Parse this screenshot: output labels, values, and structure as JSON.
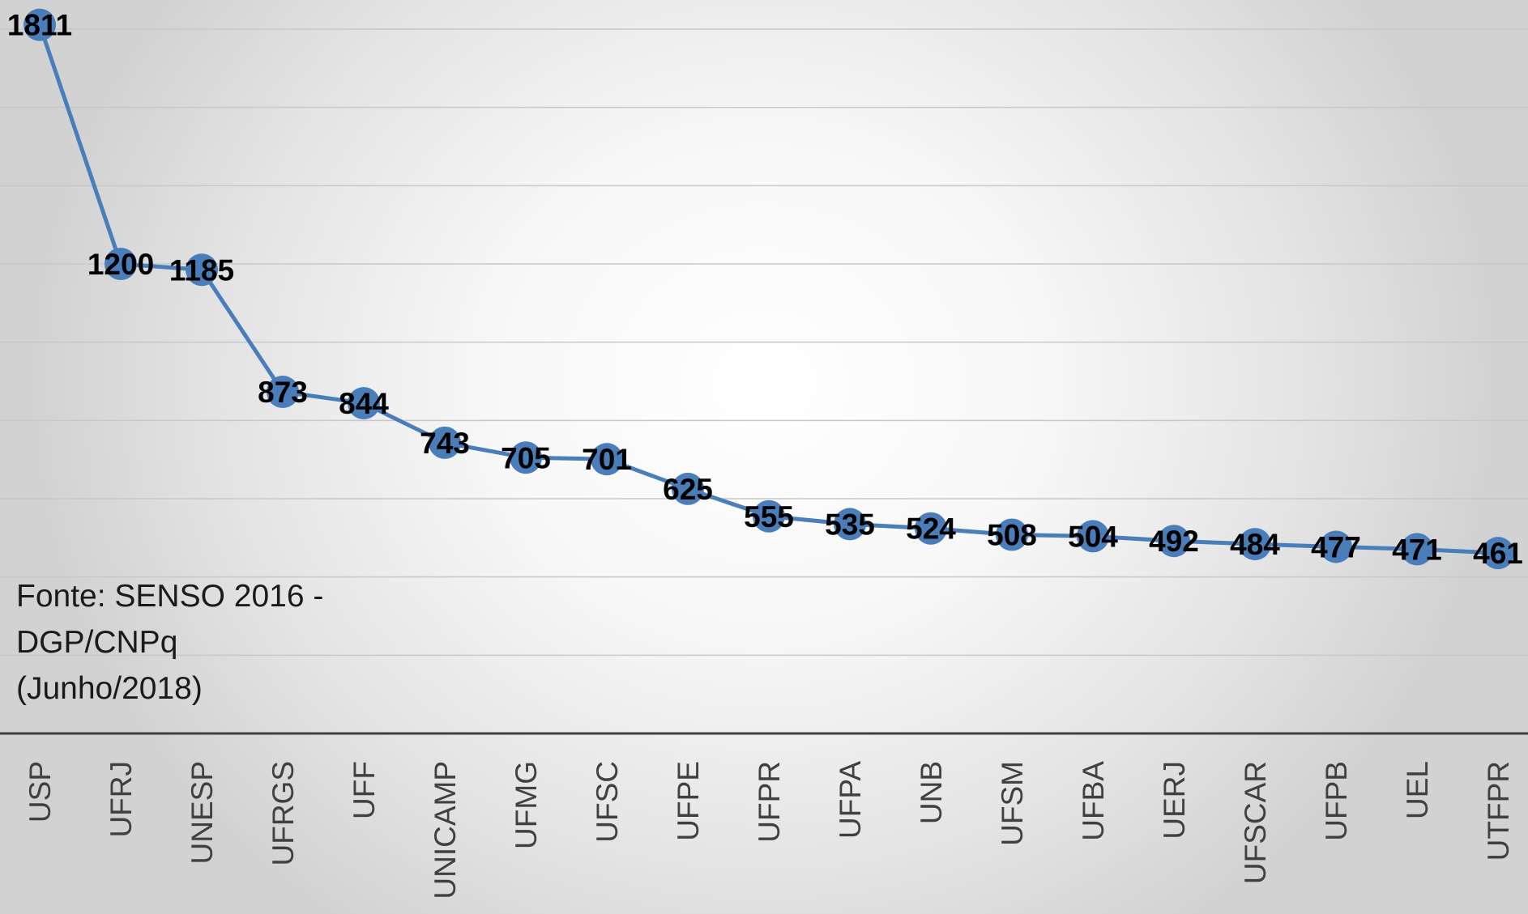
{
  "chart_data": {
    "type": "line",
    "title": "",
    "xlabel": "",
    "ylabel": "",
    "categories": [
      "USP",
      "UFRJ",
      "UNESP",
      "UFRGS",
      "UFF",
      "UNICAMP",
      "UFMG",
      "UFSC",
      "UFPE",
      "UFPR",
      "UFPA",
      "UNB",
      "UFSM",
      "UFBA",
      "UERJ",
      "UFSCAR",
      "UFPB",
      "UEL",
      "UTFPR"
    ],
    "values": [
      1811,
      1200,
      1185,
      873,
      844,
      743,
      705,
      701,
      625,
      555,
      535,
      524,
      508,
      504,
      492,
      484,
      477,
      471,
      461
    ],
    "ylim": [
      0,
      1800
    ],
    "grid": true,
    "legend": "none",
    "data_labels": true,
    "series_color": "#4a7ebb"
  },
  "source_note": {
    "lines": [
      "Fonte: SENSO 2016 -",
      "DGP/CNPq",
      "(Junho/2018)"
    ]
  }
}
